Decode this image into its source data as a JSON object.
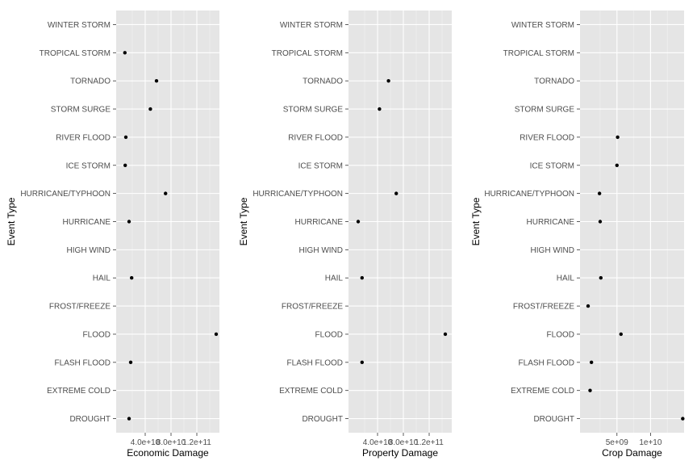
{
  "chart_data": [
    {
      "type": "scatter",
      "xlabel": "Economic Damage",
      "ylabel": "Event Type",
      "xlim": [
        -5000000000,
        155000000000
      ],
      "xticks": [
        40000000000,
        80000000000,
        120000000000
      ],
      "xtick_labels": [
        "4.0e+10",
        "8.0e+10",
        "1.2e+11"
      ],
      "grid": true,
      "categories": [
        "DROUGHT",
        "EXTREME COLD",
        "FLASH FLOOD",
        "FLOOD",
        "FROST/FREEZE",
        "HAIL",
        "HIGH WIND",
        "HURRICANE",
        "HURRICANE/TYPHOON",
        "ICE STORM",
        "RIVER FLOOD",
        "STORM SURGE",
        "TORNADO",
        "TROPICAL STORM",
        "WINTER STORM"
      ],
      "values": [
        15000000000,
        null,
        17500000000,
        150000000000,
        null,
        19000000000,
        null,
        15000000000,
        71500000000,
        9000000000,
        10000000000,
        48000000000,
        57500000000,
        8500000000,
        null
      ]
    },
    {
      "type": "scatter",
      "xlabel": "Property Damage",
      "ylabel": "Event Type",
      "xlim": [
        -5000000000,
        155000000000
      ],
      "xticks": [
        40000000000,
        80000000000,
        120000000000
      ],
      "xtick_labels": [
        "4.0e+10",
        "8.0e+10",
        "1.2e+11"
      ],
      "grid": true,
      "categories": [
        "DROUGHT",
        "EXTREME COLD",
        "FLASH FLOOD",
        "FLOOD",
        "FROST/FREEZE",
        "HAIL",
        "HIGH WIND",
        "HURRICANE",
        "HURRICANE/TYPHOON",
        "ICE STORM",
        "RIVER FLOOD",
        "STORM SURGE",
        "TORNADO",
        "TROPICAL STORM",
        "WINTER STORM"
      ],
      "values": [
        null,
        null,
        16000000000,
        145000000000,
        null,
        16000000000,
        null,
        10000000000,
        69000000000,
        null,
        null,
        43000000000,
        57000000000,
        null,
        null
      ]
    },
    {
      "type": "scatter",
      "xlabel": "Crop Damage",
      "ylabel": "Event Type",
      "xlim": [
        -500000000,
        15000000000
      ],
      "xticks": [
        5000000000,
        10000000000
      ],
      "xtick_labels": [
        "5e+09",
        "1e+10"
      ],
      "grid": true,
      "categories": [
        "DROUGHT",
        "EXTREME COLD",
        "FLASH FLOOD",
        "FLOOD",
        "FROST/FREEZE",
        "HAIL",
        "HIGH WIND",
        "HURRICANE",
        "HURRICANE/TYPHOON",
        "ICE STORM",
        "RIVER FLOOD",
        "STORM SURGE",
        "TORNADO",
        "TROPICAL STORM",
        "WINTER STORM"
      ],
      "values": [
        14800000000,
        1000000000,
        1200000000,
        5600000000,
        700000000,
        2600000000,
        null,
        2500000000,
        2400000000,
        5000000000,
        5100000000,
        null,
        null,
        null,
        null
      ]
    }
  ]
}
